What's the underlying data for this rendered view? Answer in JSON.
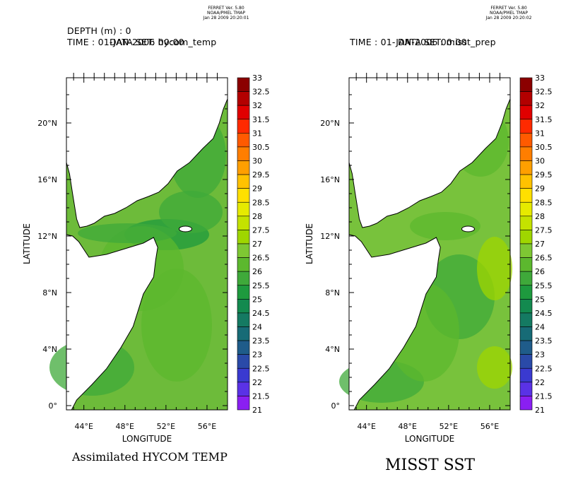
{
  "colors": {
    "land": "#ffffff",
    "outline": "#000000",
    "mask": "#ffffff"
  },
  "colorbar": {
    "labels": [
      "33",
      "32.5",
      "32",
      "31.5",
      "31",
      "30.5",
      "30",
      "29.5",
      "29",
      "28.5",
      "28",
      "27.5",
      "27",
      "26.5",
      "26",
      "25.5",
      "25",
      "24.5",
      "24",
      "23.5",
      "23",
      "22.5",
      "22",
      "21.5",
      "21"
    ],
    "colors": [
      "#8b0000",
      "#b30000",
      "#e00000",
      "#ff2a00",
      "#ff5a00",
      "#ff7e00",
      "#ff9f00",
      "#ffc200",
      "#ffe000",
      "#e6ea00",
      "#c4e200",
      "#9fd600",
      "#7ec733",
      "#5cb82e",
      "#3fa93a",
      "#1e9a3e",
      "#138a4f",
      "#147a62",
      "#176b76",
      "#1f5c8a",
      "#2a4aa8",
      "#3a3ad0",
      "#5a32e6",
      "#8a1ff2",
      "#c80aff"
    ]
  },
  "panels": [
    {
      "ferret_lines": [
        "FERRET Ver. 5.80",
        "NOAA/PMEL TMAP",
        "Jan 28 2009 20:20:01"
      ],
      "depth_line": "DEPTH (m) : 0",
      "time_line": "TIME : 01-JAN-2006 00:00",
      "overlay_title": "DATA SET: hycom_temp",
      "caption": "Assimilated HYCOM TEMP"
    },
    {
      "ferret_lines": [
        "FERRET Ver. 5.80",
        "NOAA/PMEL TMAP",
        "Jan 28 2009 20:20:02"
      ],
      "depth_line": "",
      "time_line": "TIME : 01-JAN-2006 00:00",
      "overlay_title": "DATA SET: misst_prep",
      "caption": "MISST SST"
    }
  ],
  "chart_data": [
    {
      "type": "heatmap",
      "title": "DATA SET: hycom_temp",
      "xlabel": "LONGITUDE",
      "ylabel": "LATITUDE",
      "x_ticks": [
        "44°E",
        "48°E",
        "52°E",
        "56°E"
      ],
      "y_ticks": [
        "0°",
        "4°N",
        "8°N",
        "12°N",
        "16°N",
        "20°N"
      ],
      "xlim": [
        42.3,
        58.0
      ],
      "ylim": [
        -0.3,
        23.2
      ],
      "color_scale": {
        "min": 21,
        "max": 33,
        "step": 0.5
      },
      "dominant_values": {
        "gulf_of_aden": 25.5,
        "open_ocean": 26.5
      }
    },
    {
      "type": "heatmap",
      "title": "DATA SET: misst_prep",
      "xlabel": "LONGITUDE",
      "ylabel": "LATITUDE",
      "x_ticks": [
        "44°E",
        "48°E",
        "52°E",
        "56°E"
      ],
      "y_ticks": [
        "0°",
        "4°N",
        "8°N",
        "12°N",
        "16°N",
        "20°N"
      ],
      "xlim": [
        42.3,
        58.0
      ],
      "ylim": [
        -0.3,
        23.2
      ],
      "color_scale": {
        "min": 21,
        "max": 33,
        "step": 0.5
      },
      "dominant_values": {
        "gulf_of_aden": 27,
        "open_ocean": 26.5
      }
    }
  ]
}
